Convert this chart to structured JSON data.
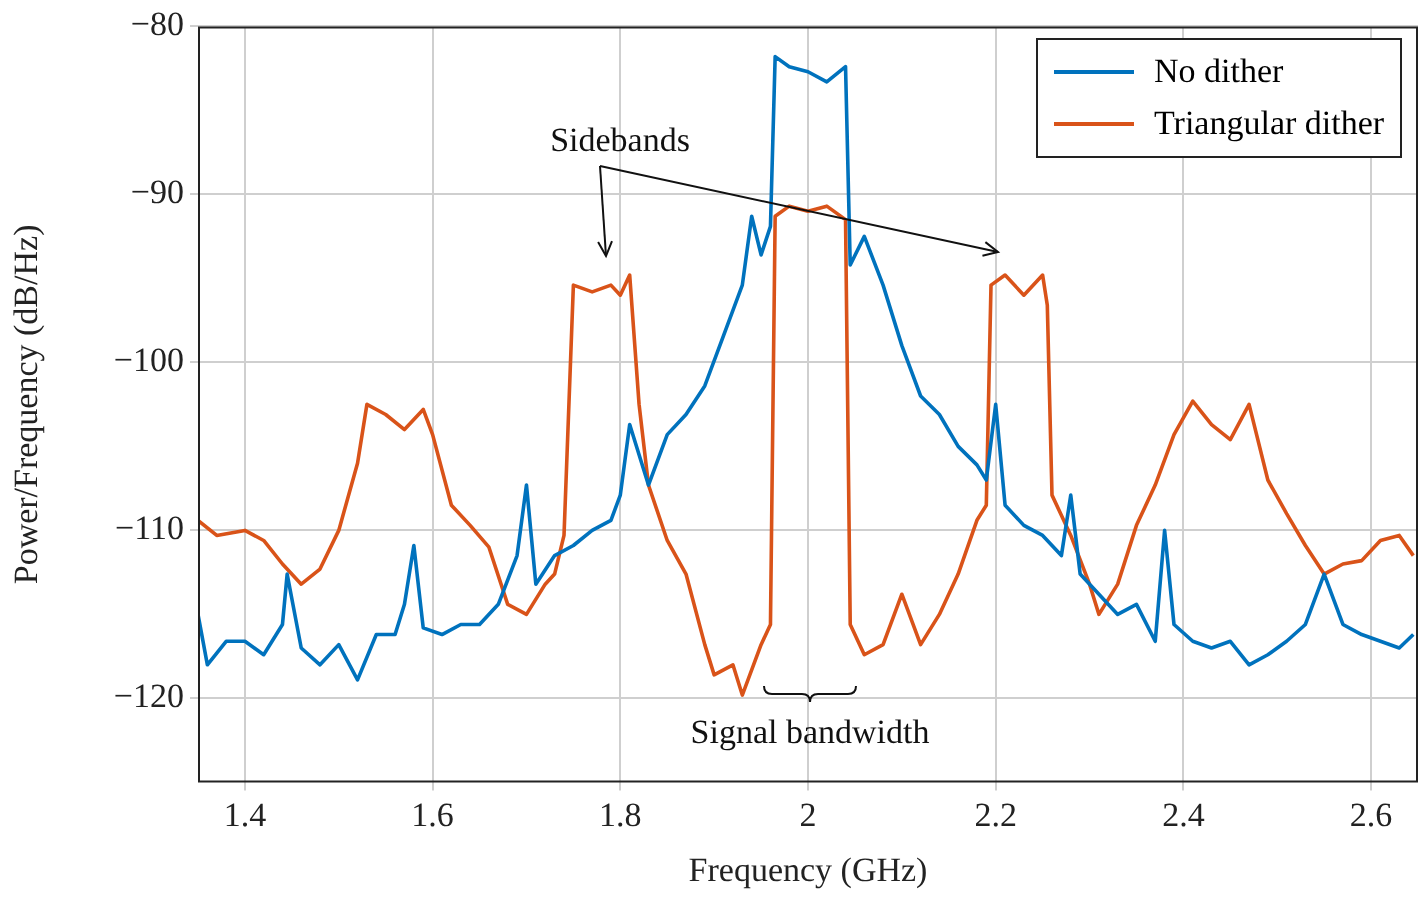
{
  "chart_data": {
    "type": "line",
    "xlabel": "Frequency (GHz)",
    "ylabel": "Power/Frequency (dB/Hz)",
    "xlim": [
      1.35,
      2.65
    ],
    "xticks": [
      {
        "value": 1.4,
        "label": "1.4"
      },
      {
        "value": 1.6,
        "label": "1.6"
      },
      {
        "value": 1.8,
        "label": "1.8"
      },
      {
        "value": 2,
        "label": "2"
      },
      {
        "value": 2.2,
        "label": "2.2"
      },
      {
        "value": 2.4,
        "label": "2.4"
      },
      {
        "value": 2.6,
        "label": "2.6"
      }
    ],
    "ylim": [
      -125,
      -80
    ],
    "yticks": [
      -120,
      -110,
      -100,
      -90,
      -80
    ],
    "grid": true,
    "legend": "top right",
    "annotations": [
      "Sidebands",
      "Signal bandwidth"
    ],
    "series": [
      {
        "name": "No dither",
        "color": "#0072bd",
        "x": [
          1.35,
          1.36,
          1.38,
          1.4,
          1.42,
          1.44,
          1.445,
          1.46,
          1.48,
          1.5,
          1.52,
          1.54,
          1.56,
          1.57,
          1.58,
          1.59,
          1.61,
          1.63,
          1.65,
          1.67,
          1.69,
          1.7,
          1.71,
          1.73,
          1.75,
          1.77,
          1.79,
          1.8,
          1.81,
          1.83,
          1.85,
          1.87,
          1.89,
          1.91,
          1.93,
          1.94,
          1.95,
          1.96,
          1.965,
          1.98,
          2,
          2.02,
          2.04,
          2.045,
          2.06,
          2.08,
          2.1,
          2.12,
          2.14,
          2.16,
          2.18,
          2.19,
          2.2,
          2.21,
          2.23,
          2.25,
          2.27,
          2.28,
          2.29,
          2.31,
          2.33,
          2.35,
          2.37,
          2.38,
          2.39,
          2.41,
          2.43,
          2.45,
          2.47,
          2.49,
          2.51,
          2.53,
          2.55,
          2.57,
          2.59,
          2.61,
          2.63,
          2.645
        ],
        "values": [
          -115,
          -118,
          -116.6,
          -116.6,
          -117.4,
          -115.6,
          -112.6,
          -117,
          -118,
          -116.8,
          -118.9,
          -116.2,
          -116.2,
          -114.4,
          -110.9,
          -115.8,
          -116.2,
          -115.6,
          -115.6,
          -114.4,
          -111.5,
          -107.3,
          -113.2,
          -111.5,
          -110.9,
          -110,
          -109.4,
          -107.9,
          -103.7,
          -107.3,
          -104.3,
          -103.1,
          -101.4,
          -98.4,
          -95.4,
          -91.3,
          -93.6,
          -91.9,
          -81.8,
          -82.4,
          -82.7,
          -83.3,
          -82.4,
          -94.2,
          -92.5,
          -95.4,
          -99,
          -102,
          -103.1,
          -105,
          -106.1,
          -107,
          -102.5,
          -108.5,
          -109.7,
          -110.3,
          -111.5,
          -107.9,
          -112.6,
          -113.8,
          -115,
          -114.4,
          -116.6,
          -110,
          -115.6,
          -116.6,
          -117,
          -116.6,
          -118,
          -117.4,
          -116.6,
          -115.6,
          -112.6,
          -115.6,
          -116.2,
          -116.6,
          -117,
          -116.2
        ]
      },
      {
        "name": "Triangular dither",
        "color": "#d95319",
        "x": [
          1.35,
          1.37,
          1.4,
          1.42,
          1.44,
          1.46,
          1.48,
          1.5,
          1.52,
          1.53,
          1.55,
          1.57,
          1.59,
          1.6,
          1.62,
          1.64,
          1.66,
          1.68,
          1.7,
          1.72,
          1.73,
          1.74,
          1.75,
          1.77,
          1.79,
          1.8,
          1.81,
          1.82,
          1.83,
          1.85,
          1.87,
          1.89,
          1.9,
          1.92,
          1.93,
          1.95,
          1.96,
          1.965,
          1.98,
          2,
          2.02,
          2.04,
          2.045,
          2.06,
          2.08,
          2.1,
          2.12,
          2.14,
          2.16,
          2.18,
          2.19,
          2.195,
          2.21,
          2.23,
          2.25,
          2.255,
          2.26,
          2.28,
          2.3,
          2.31,
          2.33,
          2.35,
          2.37,
          2.39,
          2.41,
          2.43,
          2.45,
          2.47,
          2.49,
          2.51,
          2.53,
          2.55,
          2.57,
          2.59,
          2.61,
          2.63,
          2.645
        ],
        "values": [
          -109.4,
          -110.3,
          -110,
          -110.6,
          -112,
          -113.2,
          -112.3,
          -110,
          -106,
          -102.5,
          -103.1,
          -104,
          -102.8,
          -104.3,
          -108.5,
          -109.7,
          -111,
          -114.4,
          -115,
          -113.2,
          -112.6,
          -110.3,
          -95.4,
          -95.8,
          -95.4,
          -96,
          -94.8,
          -102.5,
          -107.3,
          -110.6,
          -112.6,
          -116.8,
          -118.6,
          -118,
          -119.8,
          -116.8,
          -115.6,
          -91.3,
          -90.7,
          -91,
          -90.7,
          -91.5,
          -115.6,
          -117.4,
          -116.8,
          -113.8,
          -116.8,
          -115,
          -112.6,
          -109.4,
          -108.5,
          -95.4,
          -94.8,
          -96,
          -94.8,
          -96.6,
          -107.9,
          -110.3,
          -113.2,
          -115,
          -113.2,
          -109.7,
          -107.3,
          -104.3,
          -102.3,
          -103.7,
          -104.6,
          -102.5,
          -107,
          -109,
          -110.9,
          -112.6,
          -112,
          -111.8,
          -110.6,
          -110.3,
          -111.5
        ]
      }
    ]
  }
}
